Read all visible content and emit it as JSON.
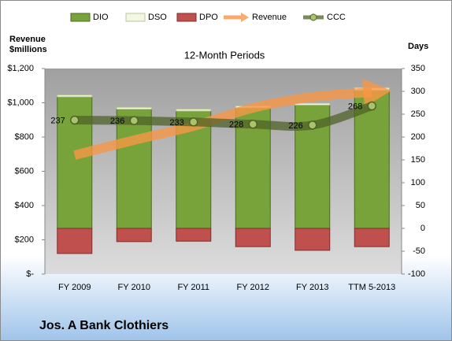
{
  "chart_data": {
    "type": "bar",
    "title": "12-Month Periods",
    "y_label": "Revenue $millions",
    "y2_label": "Days",
    "footer": "Jos. A Bank Clothiers",
    "categories": [
      "FY 2009",
      "FY 2010",
      "FY 2011",
      "FY 2012",
      "FY 2013",
      "TTM 5-2013"
    ],
    "series": [
      {
        "name": "DIO",
        "type": "bar",
        "axis": "y2",
        "color": "#77a33a",
        "values": [
          288,
          261,
          257,
          264,
          270,
          302
        ]
      },
      {
        "name": "DSO",
        "type": "bar",
        "axis": "y2",
        "color": "#f3f8e3",
        "values": [
          4,
          4,
          4,
          4,
          4,
          6
        ]
      },
      {
        "name": "DPO",
        "type": "bar",
        "axis": "y2",
        "color": "#c0504d",
        "values": [
          -55,
          -29,
          -28,
          -40,
          -48,
          -40
        ]
      },
      {
        "name": "Revenue",
        "type": "line",
        "color": "#f79646",
        "arrow": true,
        "values": [
          694,
          782,
          864,
          970,
          1034,
          1062
        ]
      },
      {
        "name": "CCC",
        "type": "line",
        "axis": "y2",
        "color": "#4f6228",
        "markers": true,
        "values": [
          237,
          236,
          233,
          228,
          226,
          268
        ]
      }
    ],
    "ylim": [
      0,
      1200
    ],
    "yticks": [
      {
        "value": 0,
        "label": "$-"
      },
      {
        "value": 200,
        "label": "$200"
      },
      {
        "value": 400,
        "label": "$400"
      },
      {
        "value": 600,
        "label": "$600"
      },
      {
        "value": 800,
        "label": "$800"
      },
      {
        "value": 1000,
        "label": "$1,000"
      },
      {
        "value": 1200,
        "label": "$1,200"
      }
    ],
    "y2lim": [
      -100,
      350
    ],
    "y2ticks": [
      -100,
      -50,
      0,
      50,
      100,
      150,
      200,
      250,
      300,
      350
    ],
    "legend": "top"
  }
}
